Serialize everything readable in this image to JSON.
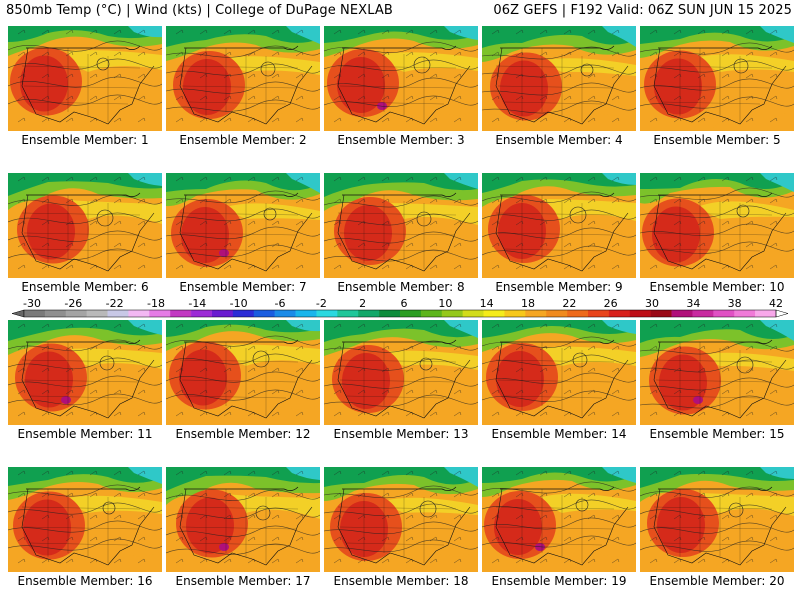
{
  "header": {
    "title_left": "850mb Temp (°C) | Wind (kts) | College of DuPage NEXLAB",
    "title_right": "06Z GEFS | F192 Valid: 06Z SUN JUN 15 2025"
  },
  "members": [
    "Ensemble Member: 1",
    "Ensemble Member: 2",
    "Ensemble Member: 3",
    "Ensemble Member: 4",
    "Ensemble Member: 5",
    "Ensemble Member: 6",
    "Ensemble Member: 7",
    "Ensemble Member: 8",
    "Ensemble Member: 9",
    "Ensemble Member: 10",
    "Ensemble Member: 11",
    "Ensemble Member: 12",
    "Ensemble Member: 13",
    "Ensemble Member: 14",
    "Ensemble Member: 15",
    "Ensemble Member: 16",
    "Ensemble Member: 17",
    "Ensemble Member: 18",
    "Ensemble Member: 19",
    "Ensemble Member: 20"
  ],
  "colorbar": {
    "tick_labels": [
      "-30",
      "-26",
      "-22",
      "-18",
      "-14",
      "-10",
      "-6",
      "-2",
      "2",
      "6",
      "10",
      "14",
      "18",
      "22",
      "26",
      "30",
      "34",
      "38",
      "42"
    ],
    "colors": [
      "#7a7a7a",
      "#8f8f8f",
      "#a4a4a4",
      "#b9b9b9",
      "#c8c8e6",
      "#f3b8f3",
      "#e57be5",
      "#c238c2",
      "#9c2bd6",
      "#6a1bd0",
      "#2c2cd6",
      "#1a5de0",
      "#1a8be8",
      "#19b5ec",
      "#2ad8e0",
      "#1fc69a",
      "#12a86a",
      "#0e8c3c",
      "#2b9d23",
      "#5db51c",
      "#95c81a",
      "#d2dc1a",
      "#f5ec1a",
      "#f7c81a",
      "#f5a623",
      "#f08a1e",
      "#ee6a1a",
      "#e8441a",
      "#d8201a",
      "#bd0e16",
      "#9a0a18",
      "#b0107a",
      "#c82aa0",
      "#e050c4",
      "#f07ad8",
      "#f8a8ea"
    ]
  },
  "map_colors": {
    "cold": "#10a050",
    "cool": "#7cc22a",
    "mild": "#f2e22a",
    "warm": "#f5a623",
    "hot": "#e6501c",
    "veryhot": "#d52a1a",
    "extreme": "#b0107a",
    "ocean_cold": "#2fc8c8"
  }
}
